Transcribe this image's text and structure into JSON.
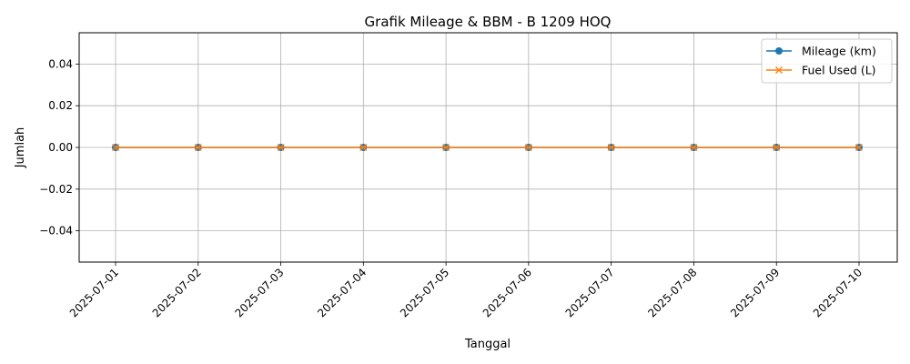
{
  "chart_data": {
    "type": "line",
    "title": "Grafik Mileage & BBM - B 1209 HOQ",
    "xlabel": "Tanggal",
    "ylabel": "Jumlah",
    "x": [
      "2025-07-01",
      "2025-07-02",
      "2025-07-03",
      "2025-07-04",
      "2025-07-05",
      "2025-07-06",
      "2025-07-07",
      "2025-07-08",
      "2025-07-09",
      "2025-07-10"
    ],
    "ylim": [
      -0.055,
      0.055
    ],
    "yticks": [
      -0.04,
      -0.02,
      0.0,
      0.02,
      0.04
    ],
    "ytick_labels": [
      "−0.04",
      "−0.02",
      "0.00",
      "0.02",
      "0.04"
    ],
    "grid": true,
    "legend_position": "top-right",
    "series": [
      {
        "name": "Mileage (km)",
        "color": "#1f77b4",
        "marker": "circle",
        "values": [
          0,
          0,
          0,
          0,
          0,
          0,
          0,
          0,
          0,
          0
        ]
      },
      {
        "name": "Fuel Used (L)",
        "color": "#ff7f0e",
        "marker": "x",
        "values": [
          0,
          0,
          0,
          0,
          0,
          0,
          0,
          0,
          0,
          0
        ]
      }
    ]
  }
}
